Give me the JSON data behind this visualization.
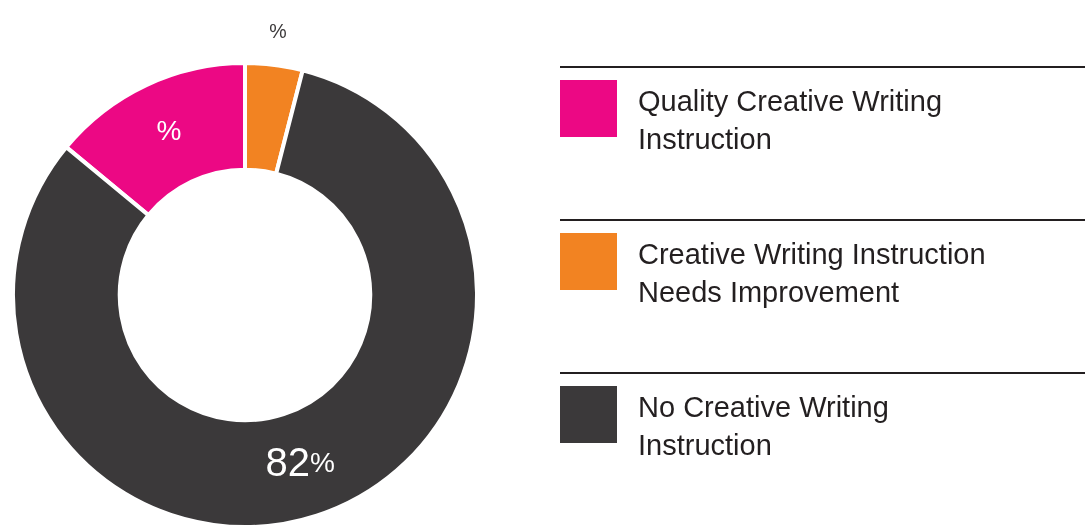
{
  "chart_data": {
    "type": "donut",
    "categories": [
      "Quality Creative Writing Instruction",
      "Creative Writing Instruction Needs Improvement",
      "No Creative Writing Instruction"
    ],
    "values": [
      14,
      4,
      82
    ],
    "colors": [
      "#ec0884",
      "#f28322",
      "#3b393a"
    ],
    "value_labels": [
      "%",
      "%",
      "82%"
    ],
    "legend": "right"
  }
}
